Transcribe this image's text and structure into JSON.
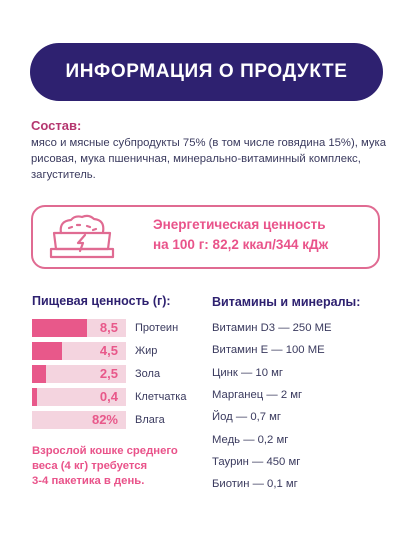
{
  "banner": {
    "title": "ИНФОРМАЦИЯ О ПРОДУКТЕ"
  },
  "composition": {
    "title": "Состав:",
    "text": "мясо и мясные субпродукты 75% (в том числе говядина 15%), мука рисовая, мука пшеничная, минерально-витаминный комплекс, загуститель."
  },
  "energy": {
    "icon": "food-bowl-lightning-icon",
    "line1": "Энергетическая ценность",
    "line2": "на 100 г: 82,2 ккал/344 кДж"
  },
  "nutrition": {
    "title": "Пищевая ценность (г):",
    "items": [
      {
        "value": "8,5",
        "label": "Протеин",
        "fill": 0.58
      },
      {
        "value": "4,5",
        "label": "Жир",
        "fill": 0.32
      },
      {
        "value": "2,5",
        "label": "Зола",
        "fill": 0.15
      },
      {
        "value": "0,4",
        "label": "Клетчатка",
        "fill": 0.05
      },
      {
        "value": "82%",
        "label": "Влага",
        "fill": 0.0
      }
    ]
  },
  "note": {
    "line1": "Взрослой кошке среднего",
    "line2": "веса (4 кг) требуется",
    "line3": "3-4 пакетика в день."
  },
  "vitamins": {
    "title": "Витамины и минералы:",
    "items": [
      "Витамин D3 — 250 МЕ",
      "Витамин Е — 100 МЕ",
      "Цинк — 10 мг",
      "Марганец — 2 мг",
      "Йод — 0,7 мг",
      "Медь — 0,2 мг",
      "Таурин — 450 мг",
      "Биотин — 0,1 мг"
    ]
  },
  "colors": {
    "banner": "#2e2170",
    "accent": "#e8588a",
    "bar_track": "#f4d4df"
  }
}
